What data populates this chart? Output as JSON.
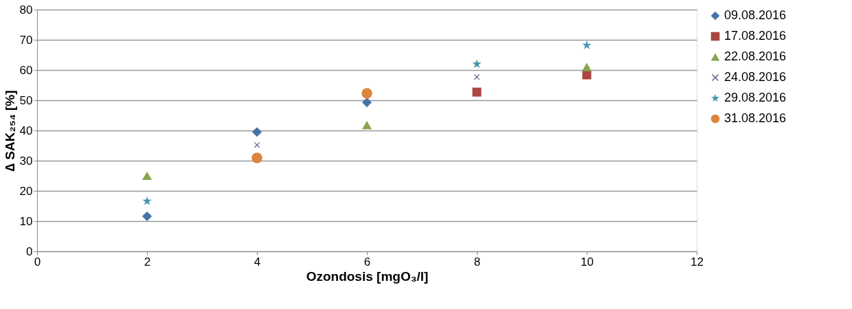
{
  "chart_data": {
    "type": "scatter",
    "xlabel": "Ozondosis [mgO₃/l]",
    "ylabel": "∆ SAK₂₅₄ [%]",
    "xlim": [
      0,
      12
    ],
    "xticks": [
      0,
      2,
      4,
      6,
      8,
      10,
      12
    ],
    "ylim": [
      0,
      80
    ],
    "yticks": [
      0,
      10,
      20,
      30,
      40,
      50,
      60,
      70,
      80
    ],
    "grid": "y",
    "legend": "right",
    "series": [
      {
        "name": "09.08.2016",
        "color": "#4572a7",
        "marker": "diamond",
        "x": [
          2,
          4,
          6
        ],
        "values": [
          11.6,
          39.5,
          49.3
        ]
      },
      {
        "name": "17.08.2016",
        "color": "#aa4643",
        "marker": "square",
        "x": [
          8,
          10
        ],
        "values": [
          52.7,
          58.4
        ]
      },
      {
        "name": "22.08.2016",
        "color": "#89a54e",
        "marker": "triangle",
        "x": [
          2,
          6,
          10
        ],
        "values": [
          25,
          41.8,
          61
        ]
      },
      {
        "name": "24.08.2016",
        "color": "#71588f",
        "marker": "cross",
        "x": [
          4,
          8
        ],
        "values": [
          35.2,
          57.7
        ]
      },
      {
        "name": "29.08.2016",
        "color": "#4198af",
        "marker": "star",
        "x": [
          2,
          8,
          10
        ],
        "values": [
          16.6,
          62,
          68.2
        ]
      },
      {
        "name": "31.08.2016",
        "color": "#db843d",
        "marker": "circle",
        "x": [
          4,
          6
        ],
        "values": [
          30.9,
          52.3
        ]
      }
    ]
  }
}
